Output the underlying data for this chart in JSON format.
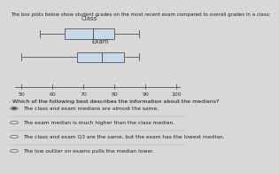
{
  "title_text": "The box plots below show student grades on the most recent exam compared to overall grades in a class:",
  "class_box": {
    "label": "Class",
    "whisker_low": 56,
    "q1": 64,
    "median": 73,
    "q3": 80,
    "whisker_high": 88
  },
  "exam_box": {
    "label": "Exam",
    "whisker_low": 50,
    "q1": 68,
    "median": 76,
    "q3": 83,
    "whisker_high": 88
  },
  "xlim": [
    46,
    103
  ],
  "xticks": [
    50,
    60,
    70,
    80,
    90,
    100
  ],
  "box_color": "#c8d8e4",
  "box_edge_color": "#666666",
  "whisker_color": "#666666",
  "median_color": "#555555",
  "bg_color": "#d8d8d8",
  "white_bg": "#f0f0f0",
  "answer_options": [
    "The class and exam medians are almost the same.",
    "The exam median is much higher than the class median.",
    "The class and exam Q3 are the same, but the exam has the lowest median.",
    "The low outlier on exams pulls the median lower."
  ],
  "selected_answer": 0,
  "label_fontsize": 5.0,
  "tick_fontsize": 4.5,
  "answer_fontsize": 4.3,
  "title_fontsize": 4.0,
  "question_fontsize": 4.5
}
